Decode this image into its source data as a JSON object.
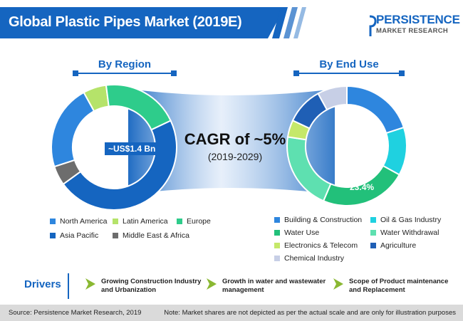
{
  "header": {
    "title": "Global Plastic Pipes Market (2019E)",
    "logo_name": "PERSISTENCE",
    "logo_sub": "MARKET RESEARCH"
  },
  "colors": {
    "brand_blue": "#1565c0",
    "north_america": "#2e86de",
    "latin_america": "#b5e36a",
    "europe": "#2ecc8b",
    "asia_pacific": "#1565c0",
    "middle_east_africa": "#6d6d6d",
    "building_construction": "#2e86de",
    "oil_gas": "#1fd1e0",
    "water_use": "#22c07a",
    "water_withdrawal": "#5ee0b0",
    "electronics_telecom": "#c5e86a",
    "agriculture": "#1f5fb5",
    "chemical_industry": "#c7cfe6"
  },
  "chart_data": [
    {
      "type": "pie",
      "title": "By Region",
      "center_label": "~US$1.4 Bn",
      "categories": [
        "North America",
        "Latin America",
        "Europe",
        "Asia Pacific",
        "Middle East & Africa"
      ],
      "values": [
        22,
        6,
        20,
        47,
        5
      ]
    },
    {
      "type": "pie",
      "title": "By End Use",
      "highlight_label": "~23.4%",
      "categories": [
        "Building & Construction",
        "Oil & Gas Industry",
        "Water Use",
        "Water Withdrawal",
        "Electronics & Telecom",
        "Agriculture",
        "Chemical Industry"
      ],
      "values": [
        20,
        13,
        23.4,
        21,
        4.6,
        10,
        8
      ]
    }
  ],
  "cagr": {
    "label": "CAGR of ~5%",
    "years": "(2019-2029)"
  },
  "legends": {
    "region": [
      {
        "label": "North America",
        "color": "#2e86de"
      },
      {
        "label": "Latin America",
        "color": "#b5e36a"
      },
      {
        "label": "Europe",
        "color": "#2ecc8b"
      },
      {
        "label": "Asia Pacific",
        "color": "#1565c0"
      },
      {
        "label": "Middle East & Africa",
        "color": "#6d6d6d"
      }
    ],
    "end_use": [
      {
        "label": "Building & Construction",
        "color": "#2e86de"
      },
      {
        "label": "Oil & Gas Industry",
        "color": "#1fd1e0"
      },
      {
        "label": "Water Use",
        "color": "#22c07a"
      },
      {
        "label": "Water Withdrawal",
        "color": "#5ee0b0"
      },
      {
        "label": "Electronics & Telecom",
        "color": "#c5e86a"
      },
      {
        "label": "Agriculture",
        "color": "#1f5fb5"
      },
      {
        "label": "Chemical Industry",
        "color": "#c7cfe6"
      }
    ]
  },
  "drivers": {
    "title": "Drivers",
    "items": [
      {
        "line1": "Growing Construction Industry",
        "line2": "and Urbanization"
      },
      {
        "line1": "Growth in water and wastewater",
        "line2": "management"
      },
      {
        "line1": "Scope of Product maintenance",
        "line2": "and Replacement"
      }
    ]
  },
  "footer": {
    "source": "Source: Persistence Market Research, 2019",
    "note": "Note: Market shares are not depicted as per the actual scale and are only for illustration purposes"
  }
}
